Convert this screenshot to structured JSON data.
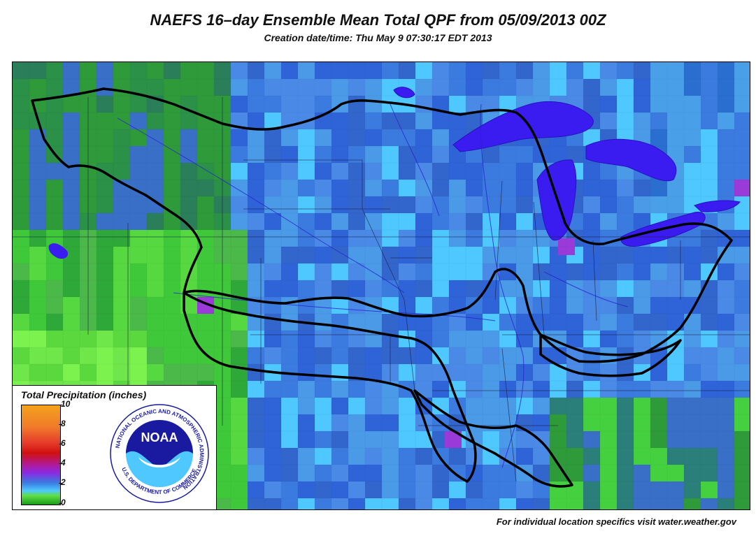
{
  "header": {
    "title": "NAEFS 16–day Ensemble Mean Total QPF from 05/09/2013 00Z",
    "subtitle": "Creation date/time: Thu May  9 07:30:17 EDT 2013"
  },
  "footer": {
    "text": "For individual location specifics visit water.weather.gov"
  },
  "legend": {
    "title": "Total Precipitation (inches)",
    "ticks": [
      "10",
      "8",
      "6",
      "4",
      "2",
      "0"
    ],
    "colors": [
      "#f4a21c",
      "#e53a2a",
      "#d01010",
      "#b01a9a",
      "#8a2be2",
      "#3b7be0",
      "#4ec8ff",
      "#5fe045",
      "#1a9a1a"
    ]
  },
  "logo": {
    "ring_text": "NATIONAL OCEANIC AND ATMOSPHERIC ADMINISTRATION",
    "center_text": "NOAA",
    "bottom_text": "U.S. DEPARTMENT OF COMMERCE"
  }
}
